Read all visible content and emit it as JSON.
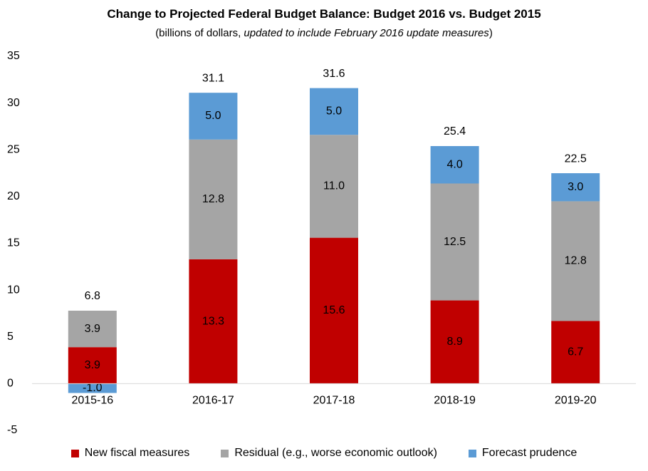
{
  "chart_data": {
    "type": "bar",
    "stacked": true,
    "title": "Change to Projected Federal Budget Balance: Budget 2016 vs. Budget 2015",
    "subtitle_plain": "(billions of dollars, ",
    "subtitle_italic": "updated to include February 2016 update measures",
    "subtitle_close": ")",
    "categories": [
      "2015-16",
      "2016-17",
      "2017-18",
      "2018-19",
      "2019-20"
    ],
    "series": [
      {
        "name": "New fiscal measures",
        "color": "#c00000",
        "values": [
          3.9,
          13.3,
          15.6,
          8.9,
          6.7
        ]
      },
      {
        "name": "Residual (e.g., worse economic outlook)",
        "color": "#a5a5a5",
        "values": [
          3.9,
          12.8,
          11.0,
          12.5,
          12.8
        ]
      },
      {
        "name": "Forecast prudence",
        "color": "#5b9bd5",
        "values": [
          -1.0,
          5.0,
          5.0,
          4.0,
          3.0
        ]
      }
    ],
    "totals": [
      6.8,
      31.1,
      31.6,
      25.4,
      22.5
    ],
    "value_labels": [
      [
        "3.9",
        "13.3",
        "15.6",
        "8.9",
        "6.7"
      ],
      [
        "3.9",
        "12.8",
        "11.0",
        "12.5",
        "12.8"
      ],
      [
        "-1.0",
        "5.0",
        "5.0",
        "4.0",
        "3.0"
      ]
    ],
    "total_labels": [
      "6.8",
      "31.1",
      "31.6",
      "25.4",
      "22.5"
    ],
    "yticks": [
      35,
      30,
      25,
      20,
      15,
      10,
      5,
      0,
      -5
    ],
    "ylim": [
      -5,
      35
    ],
    "grid": false,
    "legend_position": "bottom"
  }
}
